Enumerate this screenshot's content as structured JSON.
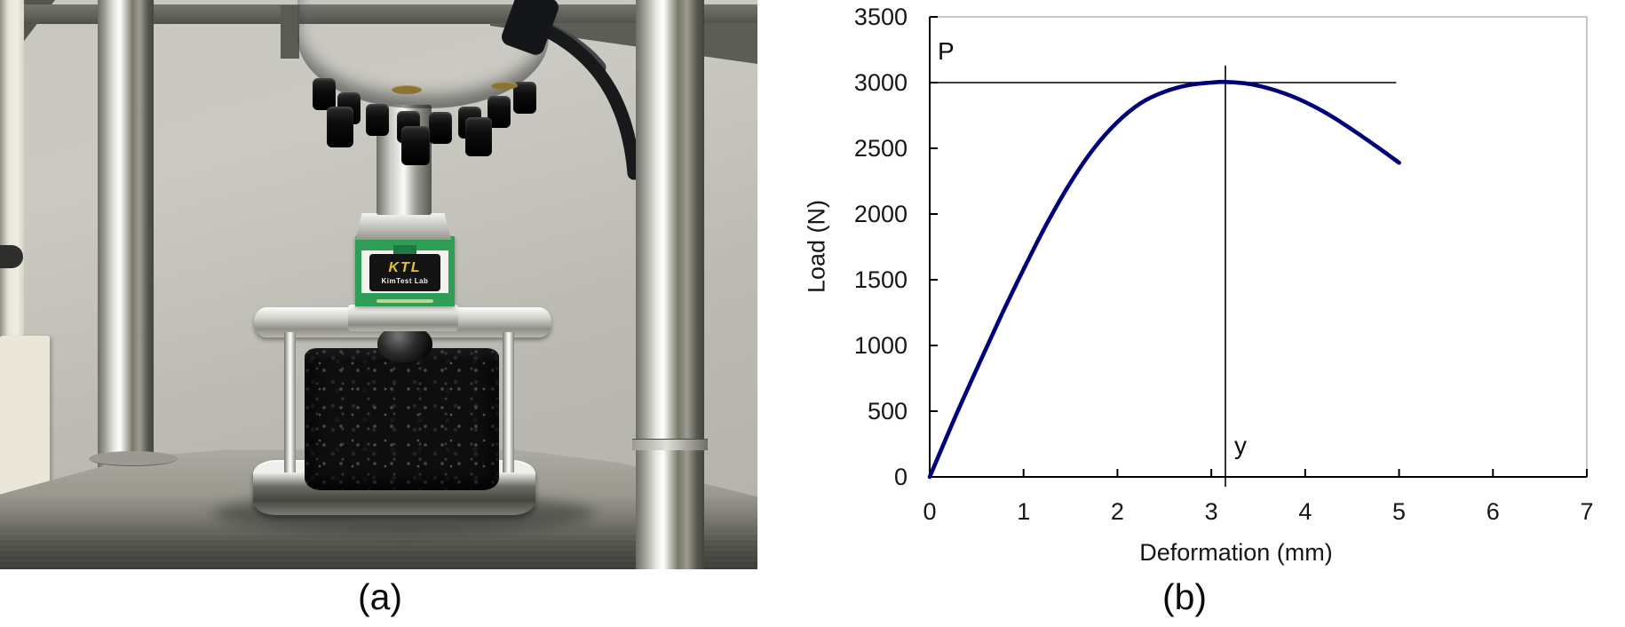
{
  "figure": {
    "caption_a": "(a)",
    "caption_b": "(b)"
  },
  "photo": {
    "load_cell_label": {
      "brand": "KTL",
      "subtitle": "KimTest Lab"
    }
  },
  "chart_data": {
    "type": "line",
    "title": "",
    "xlabel": "Deformation (mm)",
    "ylabel": "Load (N)",
    "xlim": [
      0,
      7
    ],
    "ylim": [
      0,
      3500
    ],
    "xticks": [
      0,
      1,
      2,
      3,
      4,
      5,
      6,
      7
    ],
    "yticks": [
      0,
      500,
      1000,
      1500,
      2000,
      2500,
      3000,
      3500
    ],
    "grid": false,
    "legend": "none",
    "line_color": "#00007b",
    "axis_color": "#000000",
    "plot_border_color": "#b6b6b6",
    "series": [
      {
        "name": "load-deformation-curve",
        "x": [
          0,
          0.25,
          0.5,
          0.75,
          1.0,
          1.25,
          1.5,
          1.75,
          2.0,
          2.25,
          2.5,
          2.75,
          3.0,
          3.15,
          3.4,
          3.6,
          3.8,
          4.0,
          4.2,
          4.4,
          4.6,
          4.8,
          5.0
        ],
        "y": [
          0,
          420,
          820,
          1210,
          1580,
          1930,
          2240,
          2500,
          2700,
          2845,
          2930,
          2980,
          3000,
          3005,
          2990,
          2958,
          2912,
          2852,
          2778,
          2690,
          2594,
          2494,
          2390
        ]
      }
    ],
    "annotations": [
      {
        "type": "hline",
        "label": "P",
        "y": 3000,
        "x_extent": [
          0,
          4.97
        ]
      },
      {
        "type": "vline",
        "label": "y",
        "x": 3.15,
        "y_extent": [
          -75,
          3130
        ]
      }
    ]
  }
}
